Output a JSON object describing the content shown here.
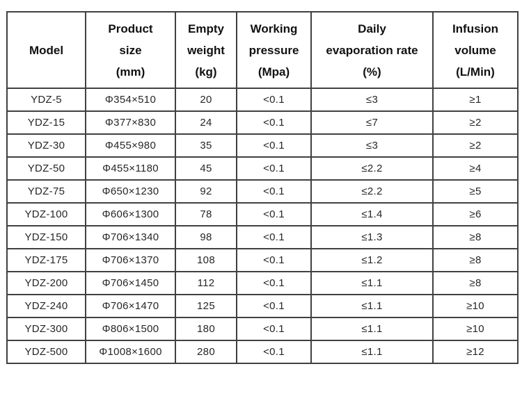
{
  "table": {
    "name": "product-specification-table",
    "columns": [
      {
        "key": "model",
        "lines": [
          "Model"
        ]
      },
      {
        "key": "product-size",
        "lines": [
          "Product",
          "size",
          "(mm)"
        ]
      },
      {
        "key": "empty-weight",
        "lines": [
          "Empty",
          "weight",
          "(kg)"
        ]
      },
      {
        "key": "working-pressure",
        "lines": [
          "Working",
          "pressure",
          "(Mpa)"
        ]
      },
      {
        "key": "daily-evaporation-rate",
        "lines": [
          "Daily",
          "evaporation rate",
          "(%)"
        ]
      },
      {
        "key": "infusion-volume",
        "lines": [
          "Infusion",
          "volume",
          "(L/Min)"
        ]
      }
    ],
    "rows": [
      [
        "YDZ-5",
        "Φ354×510",
        "20",
        "<0.1",
        "≤3",
        "≥1"
      ],
      [
        "YDZ-15",
        "Φ377×830",
        "24",
        "<0.1",
        "≤7",
        "≥2"
      ],
      [
        "YDZ-30",
        "Φ455×980",
        "35",
        "<0.1",
        "≤3",
        "≥2"
      ],
      [
        "YDZ-50",
        "Φ455×1180",
        "45",
        "<0.1",
        "≤2.2",
        "≥4"
      ],
      [
        "YDZ-75",
        "Φ650×1230",
        "92",
        "<0.1",
        "≤2.2",
        "≥5"
      ],
      [
        "YDZ-100",
        "Φ606×1300",
        "78",
        "<0.1",
        "≤1.4",
        "≥6"
      ],
      [
        "YDZ-150",
        "Φ706×1340",
        "98",
        "<0.1",
        "≤1.3",
        "≥8"
      ],
      [
        "YDZ-175",
        "Φ706×1370",
        "108",
        "<0.1",
        "≤1.2",
        "≥8"
      ],
      [
        "YDZ-200",
        "Φ706×1450",
        "112",
        "<0.1",
        "≤1.1",
        "≥8"
      ],
      [
        "YDZ-240",
        "Φ706×1470",
        "125",
        "<0.1",
        "≤1.1",
        "≥10"
      ],
      [
        "YDZ-300",
        "Φ806×1500",
        "180",
        "<0.1",
        "≤1.1",
        "≥10"
      ],
      [
        "YDZ-500",
        "Φ1008×1600",
        "280",
        "<0.1",
        "≤1.1",
        "≥12"
      ]
    ],
    "colors": {
      "border": "#404040",
      "header_text": "#111111",
      "cell_text": "#262626",
      "background": "#ffffff"
    }
  }
}
